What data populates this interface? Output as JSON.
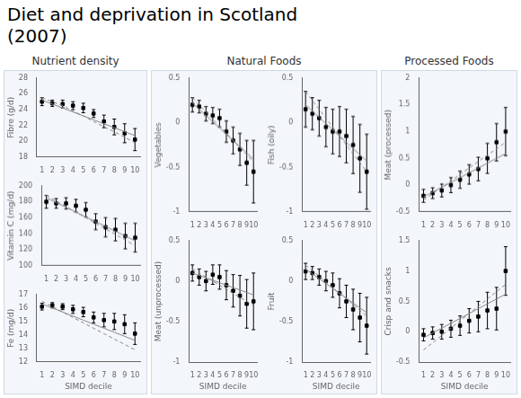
{
  "title": "Diet and deprivation in Scotland",
  "subtitle": "(2007)",
  "chart_data": [
    {
      "type": "line",
      "subtitle": "Nutrient density",
      "ylabel": "Fibre (g/d)",
      "x": [
        1,
        2,
        3,
        4,
        5,
        6,
        7,
        8,
        9,
        10
      ],
      "xlim": [
        0.5,
        10.5
      ],
      "xticks": [
        1,
        2,
        3,
        4,
        5,
        6,
        7,
        8,
        9,
        10
      ],
      "ylim": [
        18,
        28
      ],
      "yticks": [
        18,
        20,
        22,
        24,
        26,
        28
      ],
      "grid": false,
      "series": [
        {
          "type": "line",
          "color": "#888888",
          "line_style": "solid",
          "values": [
            25.2,
            24.7,
            24.2,
            23.7,
            23.2,
            22.7,
            22.2,
            21.7,
            21.2,
            20.7
          ]
        },
        {
          "type": "line",
          "color": "#888888",
          "line_style": "dashed",
          "values": [
            25.5,
            25.0,
            24.5,
            23.8,
            23.2,
            22.5,
            21.8,
            21.2,
            20.5,
            19.8
          ]
        },
        {
          "type": "scatter",
          "color": "#000000",
          "marker": "square",
          "values": [
            25.0,
            24.8,
            24.7,
            24.5,
            24.2,
            23.5,
            22.5,
            21.8,
            21.0,
            20.2
          ],
          "errors": [
            0.5,
            0.4,
            0.5,
            0.5,
            0.6,
            0.5,
            0.8,
            1.0,
            1.2,
            1.4
          ]
        }
      ]
    },
    {
      "type": "line",
      "ylabel": "Vitamin C (mg/d)",
      "x": [
        1,
        2,
        3,
        4,
        5,
        6,
        7,
        8,
        9,
        10
      ],
      "xlim": [
        0.5,
        10.5
      ],
      "xticks": [
        1,
        2,
        3,
        4,
        5,
        6,
        7,
        8,
        9,
        10
      ],
      "ylim": [
        100,
        200
      ],
      "yticks": [
        100,
        120,
        140,
        160,
        180,
        200
      ],
      "grid": false,
      "series": [
        {
          "type": "line",
          "color": "#888888",
          "line_style": "solid",
          "values": [
            185,
            179,
            173,
            167,
            161,
            155,
            149,
            143,
            137,
            131
          ]
        },
        {
          "type": "line",
          "color": "#888888",
          "line_style": "dashed",
          "values": [
            188,
            181,
            174,
            167,
            160,
            153,
            146,
            139,
            132,
            125
          ]
        },
        {
          "type": "scatter",
          "color": "#000000",
          "marker": "square",
          "values": [
            180,
            178,
            178,
            175,
            170,
            155,
            148,
            145,
            137,
            135
          ],
          "errors": [
            8,
            6,
            7,
            8,
            9,
            10,
            12,
            14,
            16,
            18
          ]
        }
      ]
    },
    {
      "type": "line",
      "ylabel": "Fe (mg/d)",
      "xlabel": "SIMD decile",
      "x": [
        1,
        2,
        3,
        4,
        5,
        6,
        7,
        8,
        9,
        10
      ],
      "xlim": [
        0.5,
        10.5
      ],
      "xticks": [
        1,
        2,
        3,
        4,
        5,
        6,
        7,
        8,
        9,
        10
      ],
      "ylim": [
        12,
        17
      ],
      "yticks": [
        12,
        13,
        14,
        15,
        16,
        17
      ],
      "grid": false,
      "series": [
        {
          "type": "line",
          "color": "#888888",
          "line_style": "solid",
          "values": [
            16.3,
            16.0,
            15.7,
            15.4,
            15.1,
            14.8,
            14.5,
            14.2,
            13.9,
            13.6
          ]
        },
        {
          "type": "line",
          "color": "#888888",
          "line_style": "dashed",
          "values": [
            16.5,
            16.1,
            15.7,
            15.3,
            14.9,
            14.5,
            14.1,
            13.7,
            13.3,
            12.9
          ]
        },
        {
          "type": "scatter",
          "color": "#000000",
          "marker": "square",
          "values": [
            16.1,
            16.2,
            16.1,
            15.9,
            15.7,
            15.3,
            15.1,
            15.0,
            14.8,
            14.1
          ],
          "errors": [
            0.25,
            0.2,
            0.22,
            0.3,
            0.35,
            0.4,
            0.5,
            0.6,
            0.7,
            0.8
          ]
        }
      ]
    },
    {
      "type": "line",
      "subtitle": "Natural Foods",
      "ylabel": "Vegetables",
      "x": [
        1,
        2,
        3,
        4,
        5,
        6,
        7,
        8,
        9,
        10
      ],
      "xlim": [
        0.5,
        10.5
      ],
      "xticks": [
        1,
        2,
        3,
        4,
        5,
        6,
        7,
        8,
        9,
        10
      ],
      "ylim": [
        -1.0,
        0.5
      ],
      "yticks": [
        -1.0,
        -0.5,
        0,
        0.5
      ],
      "grid": false,
      "series": [
        {
          "type": "line",
          "color": "#888888",
          "line_style": "solid",
          "values": [
            0.22,
            0.15,
            0.08,
            0.01,
            -0.06,
            -0.13,
            -0.2,
            -0.27,
            -0.34,
            -0.41
          ]
        },
        {
          "type": "line",
          "color": "#888888",
          "line_style": "dashed",
          "values": [
            0.28,
            0.2,
            0.12,
            0.04,
            -0.04,
            -0.12,
            -0.2,
            -0.28,
            -0.36,
            -0.44
          ]
        },
        {
          "type": "scatter",
          "color": "#000000",
          "marker": "square",
          "values": [
            0.2,
            0.18,
            0.1,
            0.08,
            0.05,
            -0.1,
            -0.2,
            -0.3,
            -0.45,
            -0.55
          ],
          "errors": [
            0.08,
            0.07,
            0.08,
            0.09,
            0.1,
            0.12,
            0.15,
            0.18,
            0.25,
            0.35
          ]
        }
      ]
    },
    {
      "type": "line",
      "ylabel": "Fish (oily)",
      "x": [
        1,
        2,
        3,
        4,
        5,
        6,
        7,
        8,
        9,
        10
      ],
      "xlim": [
        0.5,
        10.5
      ],
      "xticks": [
        1,
        2,
        3,
        4,
        5,
        6,
        7,
        8,
        9,
        10
      ],
      "ylim": [
        -1.0,
        0.5
      ],
      "yticks": [
        -1.0,
        -0.5,
        0,
        0.5
      ],
      "grid": false,
      "series": [
        {
          "type": "line",
          "color": "#888888",
          "line_style": "solid",
          "values": [
            0.2,
            0.13,
            0.06,
            -0.01,
            -0.08,
            -0.15,
            -0.22,
            -0.29,
            -0.36,
            -0.43
          ]
        },
        {
          "type": "line",
          "color": "#888888",
          "line_style": "dashed",
          "values": [
            0.35,
            0.25,
            0.15,
            0.05,
            -0.05,
            -0.15,
            -0.25,
            -0.35,
            -0.45,
            -0.55
          ]
        },
        {
          "type": "scatter",
          "color": "#000000",
          "marker": "square",
          "values": [
            0.15,
            0.1,
            0.05,
            -0.05,
            -0.1,
            -0.1,
            -0.15,
            -0.25,
            -0.4,
            -0.55
          ],
          "errors": [
            0.2,
            0.18,
            0.2,
            0.22,
            0.25,
            0.28,
            0.3,
            0.32,
            0.38,
            0.42
          ]
        }
      ]
    },
    {
      "type": "line",
      "ylabel": "Meat (unprocessed)",
      "xlabel": "SIMD decile",
      "x": [
        1,
        2,
        3,
        4,
        5,
        6,
        7,
        8,
        9,
        10
      ],
      "xlim": [
        0.5,
        10.5
      ],
      "xticks": [
        1,
        2,
        3,
        4,
        5,
        6,
        7,
        8,
        9,
        10
      ],
      "ylim": [
        -1.0,
        0.5
      ],
      "yticks": [
        -1.0,
        -0.5,
        0,
        0.5
      ],
      "grid": false,
      "series": [
        {
          "type": "line",
          "color": "#888888",
          "line_style": "solid",
          "values": [
            0.1,
            0.07,
            0.04,
            0.01,
            -0.02,
            -0.05,
            -0.08,
            -0.11,
            -0.14,
            -0.17
          ]
        },
        {
          "type": "line",
          "color": "#888888",
          "line_style": "dashed",
          "values": [
            0.15,
            0.1,
            0.05,
            0.0,
            -0.05,
            -0.1,
            -0.15,
            -0.2,
            -0.25,
            -0.3
          ]
        },
        {
          "type": "scatter",
          "color": "#000000",
          "marker": "square",
          "values": [
            0.1,
            0.05,
            0.0,
            0.08,
            0.05,
            -0.05,
            -0.12,
            -0.18,
            -0.28,
            -0.25
          ],
          "errors": [
            0.1,
            0.1,
            0.12,
            0.12,
            0.15,
            0.18,
            0.2,
            0.25,
            0.3,
            0.35
          ]
        }
      ]
    },
    {
      "type": "line",
      "ylabel": "Fruit",
      "xlabel": "SIMD decile",
      "x": [
        1,
        2,
        3,
        4,
        5,
        6,
        7,
        8,
        9,
        10
      ],
      "xlim": [
        0.5,
        10.5
      ],
      "xticks": [
        1,
        2,
        3,
        4,
        5,
        6,
        7,
        8,
        9,
        10
      ],
      "ylim": [
        -1.0,
        0.5
      ],
      "yticks": [
        -1.0,
        -0.5,
        0,
        0.5
      ],
      "grid": false,
      "series": [
        {
          "type": "line",
          "color": "#888888",
          "line_style": "solid",
          "values": [
            0.15,
            0.09,
            0.03,
            -0.03,
            -0.09,
            -0.15,
            -0.21,
            -0.27,
            -0.33,
            -0.39
          ]
        },
        {
          "type": "line",
          "color": "#888888",
          "line_style": "dashed",
          "values": [
            0.2,
            0.13,
            0.06,
            -0.01,
            -0.08,
            -0.15,
            -0.22,
            -0.29,
            -0.36,
            -0.43
          ]
        },
        {
          "type": "scatter",
          "color": "#000000",
          "marker": "square",
          "values": [
            0.12,
            0.1,
            0.05,
            0.0,
            -0.05,
            -0.15,
            -0.25,
            -0.35,
            -0.45,
            -0.55
          ],
          "errors": [
            0.1,
            0.08,
            0.1,
            0.12,
            0.15,
            0.18,
            0.2,
            0.25,
            0.3,
            0.35
          ]
        }
      ]
    },
    {
      "type": "line",
      "subtitle": "Processed Foods",
      "ylabel": "Meat (processed)",
      "x": [
        1,
        2,
        3,
        4,
        5,
        6,
        7,
        8,
        9,
        10
      ],
      "xlim": [
        0.5,
        10.5
      ],
      "xticks": [
        1,
        2,
        3,
        4,
        5,
        6,
        7,
        8,
        9,
        10
      ],
      "ylim": [
        -0.5,
        2.0
      ],
      "yticks": [
        -0.5,
        0,
        0.5,
        1.0,
        1.5,
        2.0
      ],
      "grid": false,
      "series": [
        {
          "type": "line",
          "color": "#888888",
          "line_style": "solid",
          "values": [
            -0.22,
            -0.13,
            -0.04,
            0.05,
            0.14,
            0.23,
            0.32,
            0.41,
            0.5,
            0.59
          ]
        },
        {
          "type": "line",
          "color": "#888888",
          "line_style": "dashed",
          "values": [
            -0.28,
            -0.16,
            -0.04,
            0.08,
            0.2,
            0.32,
            0.44,
            0.56,
            0.68,
            0.8
          ]
        },
        {
          "type": "scatter",
          "color": "#000000",
          "marker": "square",
          "values": [
            -0.2,
            -0.15,
            -0.1,
            0.0,
            0.1,
            0.2,
            0.3,
            0.5,
            0.8,
            1.0
          ],
          "errors": [
            0.12,
            0.1,
            0.12,
            0.14,
            0.16,
            0.18,
            0.22,
            0.28,
            0.35,
            0.45
          ]
        }
      ]
    },
    {
      "type": "line",
      "ylabel": "Crisp and snacks",
      "xlabel": "SIMD decile",
      "x": [
        1,
        2,
        3,
        4,
        5,
        6,
        7,
        8,
        9,
        10
      ],
      "xlim": [
        0.5,
        10.5
      ],
      "xticks": [
        1,
        2,
        3,
        4,
        5,
        6,
        7,
        8,
        9,
        10
      ],
      "ylim": [
        -0.5,
        1.5
      ],
      "yticks": [
        -0.5,
        0,
        0.5,
        1.0,
        1.5
      ],
      "grid": false,
      "series": [
        {
          "type": "line",
          "color": "#888888",
          "line_style": "solid",
          "values": [
            -0.1,
            -0.02,
            0.06,
            0.14,
            0.22,
            0.3,
            0.38,
            0.46,
            0.54,
            0.62
          ]
        },
        {
          "type": "line",
          "color": "#888888",
          "line_style": "dashed",
          "values": [
            -0.3,
            -0.18,
            -0.06,
            0.06,
            0.18,
            0.3,
            0.42,
            0.54,
            0.66,
            0.78
          ]
        },
        {
          "type": "scatter",
          "color": "#000000",
          "marker": "square",
          "values": [
            -0.05,
            -0.02,
            0.0,
            0.05,
            0.1,
            0.18,
            0.25,
            0.35,
            0.38,
            1.0
          ],
          "errors": [
            0.1,
            0.1,
            0.12,
            0.14,
            0.16,
            0.2,
            0.25,
            0.3,
            0.35,
            0.4
          ]
        }
      ]
    }
  ]
}
